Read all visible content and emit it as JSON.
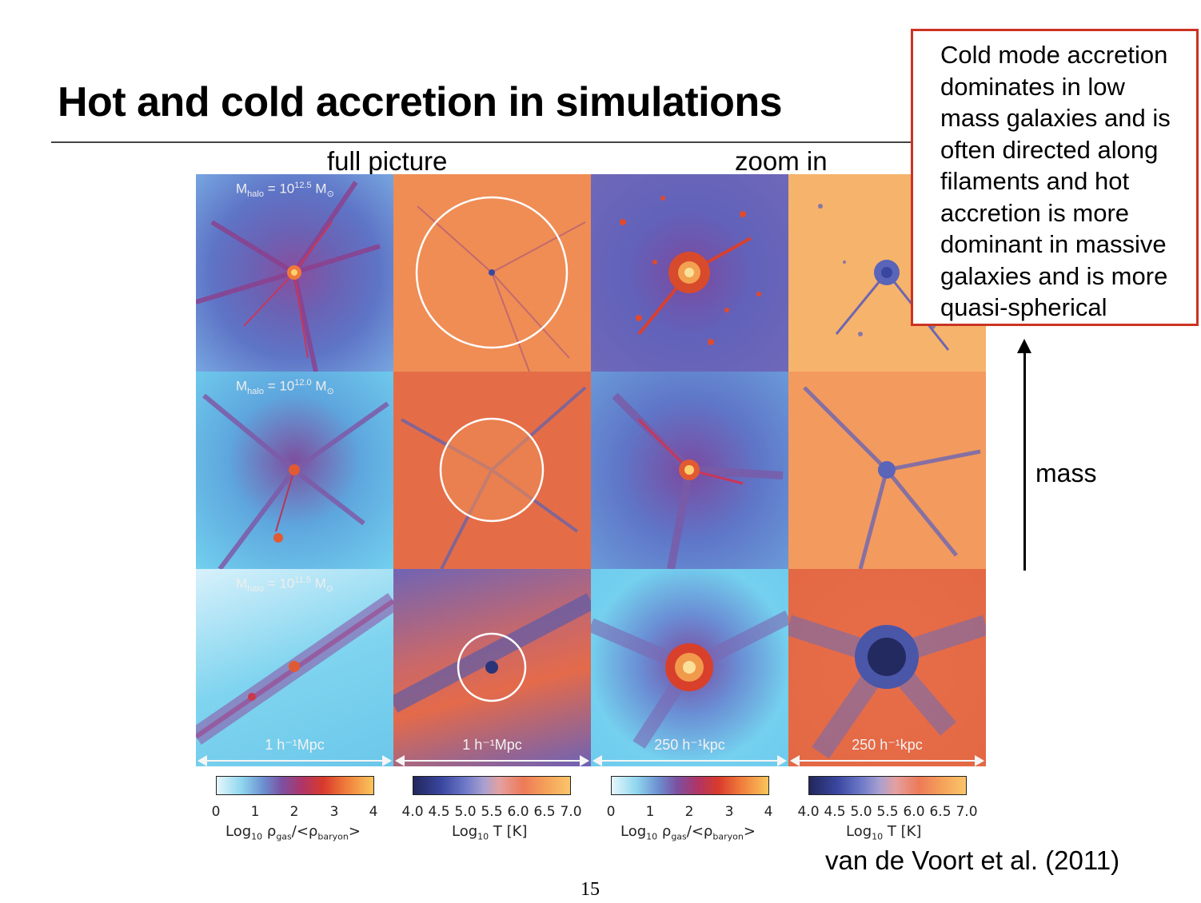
{
  "slide": {
    "title": "Hot and cold accretion in simulations",
    "col_heads": {
      "left": "full picture",
      "right": "zoom in"
    },
    "note_lines": [
      "Cold mode accretion",
      "dominates in low",
      "mass galaxies and is",
      "often directed along",
      "filaments and hot",
      "accretion is more",
      "dominant in massive",
      "galaxies and is more",
      "quasi-spherical"
    ],
    "axis_label": "mass",
    "citation": "van de Voort et al. (2011)",
    "page_number": "15"
  },
  "figure": {
    "rows": [
      {
        "mass_prefix": "M",
        "mass_sub": "halo",
        "mass_eq": " = 10",
        "mass_exp": "12.5",
        "mass_unit": " M",
        "mass_unit_sub": "⊙"
      },
      {
        "mass_prefix": "M",
        "mass_sub": "halo",
        "mass_eq": " = 10",
        "mass_exp": "12.0",
        "mass_unit": " M",
        "mass_unit_sub": "⊙"
      },
      {
        "mass_prefix": "M",
        "mass_sub": "halo",
        "mass_eq": " = 10",
        "mass_exp": "11.5",
        "mass_unit": " M",
        "mass_unit_sub": "⊙"
      }
    ],
    "scale_bars": [
      "1 h⁻¹Mpc",
      "1 h⁻¹Mpc",
      "250 h⁻¹kpc",
      "250 h⁻¹kpc"
    ],
    "colorbars": [
      {
        "ticks": [
          "0",
          "1",
          "2",
          "3",
          "4"
        ],
        "label_a": "Log",
        "label_sub": "10",
        "label_b": " ρ",
        "label_sub2": "gas",
        "label_c": "/<ρ",
        "label_sub3": "baryon",
        "label_d": ">"
      },
      {
        "ticks": [
          "4.0",
          "4.5",
          "5.0",
          "5.5",
          "6.0",
          "6.5",
          "7.0"
        ],
        "label_a": "Log",
        "label_sub": "10",
        "label_b": " T [K]"
      },
      {
        "ticks": [
          "0",
          "1",
          "2",
          "3",
          "4"
        ],
        "label_a": "Log",
        "label_sub": "10",
        "label_b": " ρ",
        "label_sub2": "gas",
        "label_c": "/<ρ",
        "label_sub3": "baryon",
        "label_d": ">"
      },
      {
        "ticks": [
          "4.0",
          "4.5",
          "5.0",
          "5.5",
          "6.0",
          "6.5",
          "7.0"
        ],
        "label_a": "Log",
        "label_sub": "10",
        "label_b": " T [K]"
      }
    ],
    "colors": {
      "note_border": "#cc3322",
      "density_low": "#8fd6ee",
      "density_mid": "#7d4f9f",
      "density_high": "#fbc55c",
      "temp_low": "#22275a",
      "temp_high": "#fbc56a"
    }
  }
}
